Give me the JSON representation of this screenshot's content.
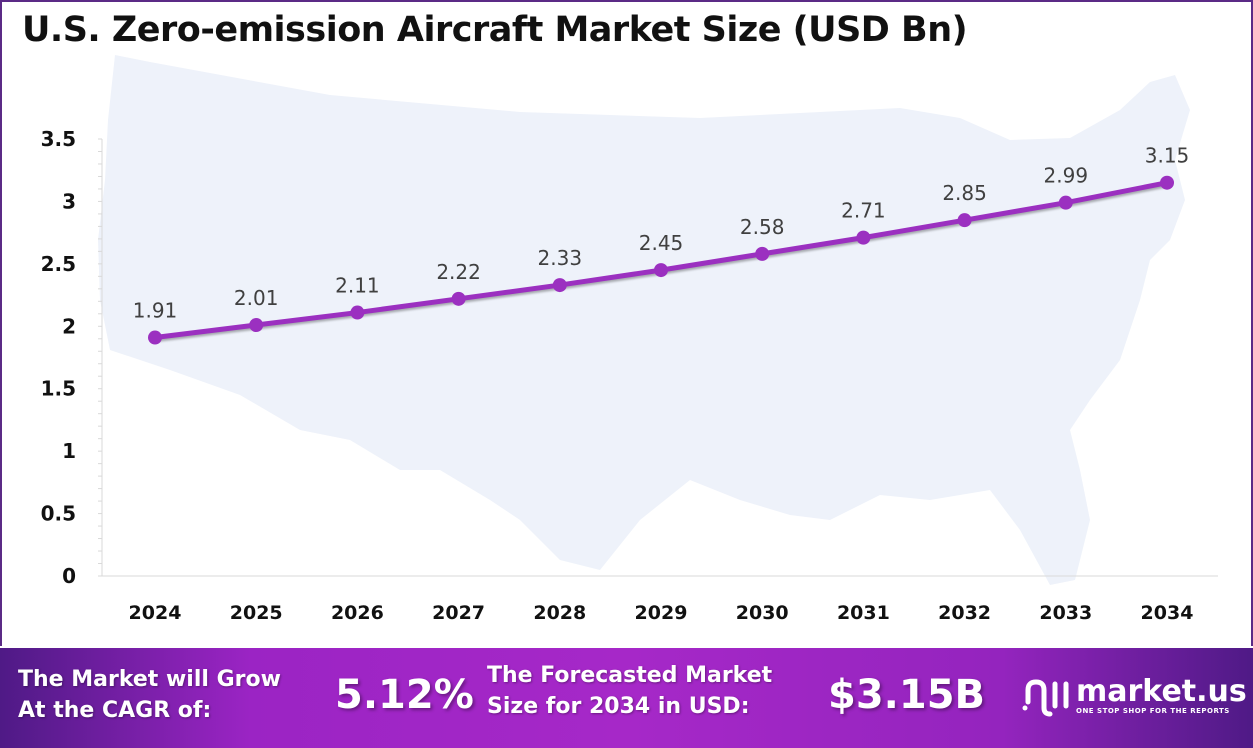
{
  "chart_data": {
    "type": "line",
    "title": "U.S. Zero-emission Aircraft Market Size (USD Bn)",
    "categories": [
      "2024",
      "2025",
      "2026",
      "2027",
      "2028",
      "2029",
      "2030",
      "2031",
      "2032",
      "2033",
      "2034"
    ],
    "values": [
      1.91,
      2.01,
      2.11,
      2.22,
      2.33,
      2.45,
      2.58,
      2.71,
      2.85,
      2.99,
      3.15
    ],
    "value_labels": [
      "1.91",
      "2.01",
      "2.11",
      "2.22",
      "2.33",
      "2.45",
      "2.58",
      "2.71",
      "2.85",
      "2.99",
      "3.15"
    ],
    "ylim": [
      0,
      3.5
    ],
    "yticks": [
      "0",
      "0.5",
      "1",
      "1.5",
      "2",
      "2.5",
      "3",
      "3.5"
    ],
    "grid": false,
    "line_color": "#9b30c0",
    "background": "US map silhouette"
  },
  "footer": {
    "cagr_label_line1": "The Market will Grow",
    "cagr_label_line2": "At the CAGR of:",
    "cagr_value": "5.12%",
    "forecast_label_line1": "The Forecasted Market",
    "forecast_label_line2": "Size for 2034 in USD:",
    "forecast_value": "$3.15B",
    "logo_name": "market.us",
    "logo_tagline": "ONE STOP SHOP FOR THE REPORTS",
    "accent": "#a628c8"
  }
}
